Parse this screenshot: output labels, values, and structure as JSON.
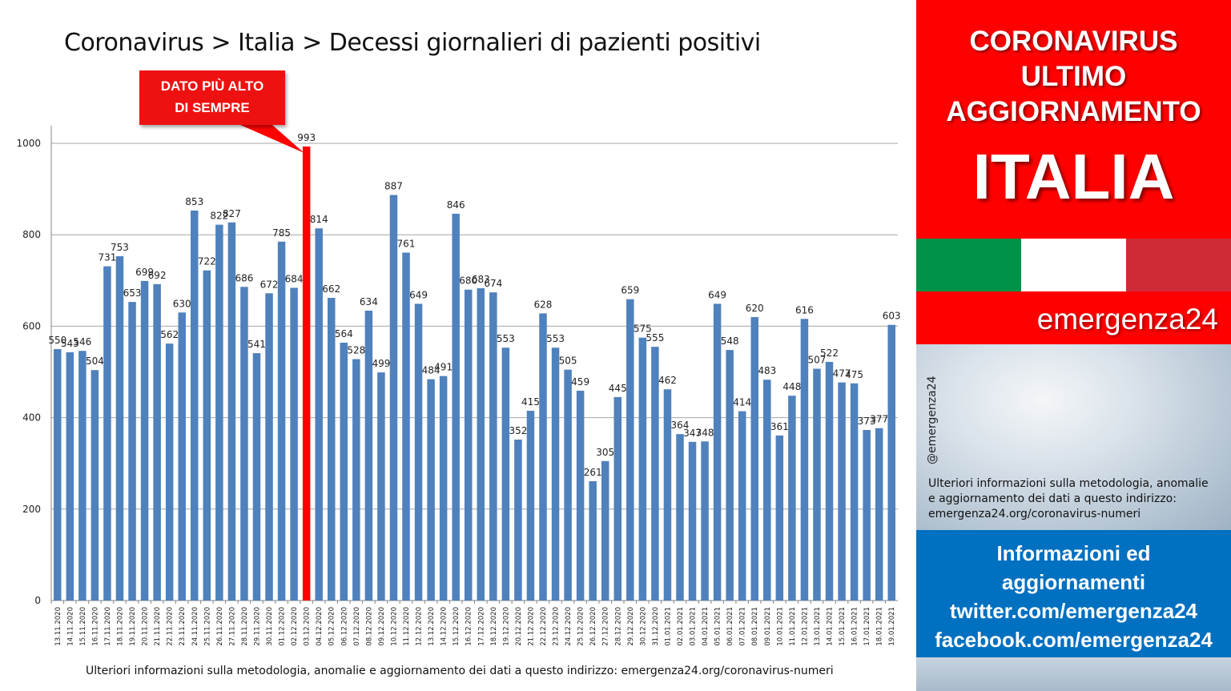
{
  "title": "Coronavirus > Italia > Decessi giornalieri di pazienti positivi",
  "callout": {
    "line1": "DATO PIÙ ALTO",
    "line2": "DI SEMPRE"
  },
  "footnote": "Ulteriori informazioni sulla metodologia, anomalie e aggiornamento dei dati a questo indirizzo: emergenza24.org/coronavirus-numeri",
  "colors": {
    "bar": "#4f81bd",
    "highlight": "#ff0000",
    "grid": "#a6a6a6",
    "axis": "#868686"
  },
  "chart_data": {
    "type": "bar",
    "title": "Coronavirus > Italia > Decessi giornalieri di pazienti positivi",
    "xlabel": "",
    "ylabel": "",
    "ylim": [
      0,
      1000
    ],
    "yticks": [
      0,
      200,
      400,
      600,
      800,
      1000
    ],
    "grid": true,
    "legend": "none",
    "highlight_index": 20,
    "categories": [
      "13.11.2020",
      "14.11.2020",
      "15.11.2020",
      "16.11.2020",
      "17.11.2020",
      "18.11.2020",
      "19.11.2020",
      "20.11.2020",
      "21.11.2020",
      "22.11.2020",
      "23.11.2020",
      "24.11.2020",
      "25.11.2020",
      "26.11.2020",
      "27.11.2020",
      "28.11.2020",
      "29.11.2020",
      "30.11.2020",
      "01.12.2020",
      "02.12.2020",
      "03.12.2020",
      "04.12.2020",
      "05.12.2020",
      "06.12.2020",
      "07.12.2020",
      "08.12.2020",
      "09.12.2020",
      "10.12.2020",
      "11.12.2020",
      "12.12.2020",
      "13.12.2020",
      "14.12.2020",
      "15.12.2020",
      "16.12.2020",
      "17.12.2020",
      "18.12.2020",
      "19.12.2020",
      "20.12.2020",
      "21.12.2020",
      "22.12.2020",
      "23.12.2020",
      "24.12.2020",
      "25.12.2020",
      "26.12.2020",
      "27.12.2020",
      "28.12.2020",
      "29.12.2020",
      "30.12.2020",
      "31.12.2020",
      "01.01.2021",
      "02.01.2021",
      "03.01.2021",
      "04.01.2021",
      "05.01.2021",
      "06.01.2021",
      "07.01.2021",
      "08.01.2021",
      "09.01.2021",
      "10.01.2021",
      "11.01.2021",
      "12.01.2021",
      "13.01.2021",
      "14.01.2021",
      "15.01.2021",
      "16.01.2021",
      "17.01.2021",
      "18.01.2021",
      "19.01.2021"
    ],
    "values": [
      550,
      543,
      546,
      504,
      731,
      753,
      653,
      699,
      692,
      562,
      630,
      853,
      722,
      822,
      827,
      686,
      541,
      672,
      785,
      684,
      993,
      814,
      662,
      564,
      528,
      634,
      499,
      887,
      761,
      649,
      484,
      491,
      846,
      680,
      683,
      674,
      553,
      352,
      415,
      628,
      553,
      505,
      459,
      261,
      305,
      445,
      659,
      575,
      555,
      462,
      364,
      347,
      348,
      649,
      548,
      414,
      620,
      483,
      361,
      448,
      616,
      507,
      522,
      477,
      475,
      373,
      377,
      603
    ]
  },
  "sidebar": {
    "head1": "CORONAVIRUS",
    "head2": "ULTIMO",
    "head3": "AGGIORNAMENTO",
    "country": "ITALIA",
    "flag_colors": [
      "#009246",
      "#ffffff",
      "#ce2b37"
    ],
    "brand": "emergenza24",
    "handle": "@emergenza24",
    "note1": "Ulteriori informazioni sulla metodologia, anomalie",
    "note2": "e aggiornamento dei dati a questo indirizzo:",
    "note3": "emergenza24.org/coronavirus-numeri",
    "info1": "Informazioni ed",
    "info2": "aggiornamenti",
    "info3": "twitter.com/emergenza24",
    "info4": "facebook.com/emergenza24"
  }
}
